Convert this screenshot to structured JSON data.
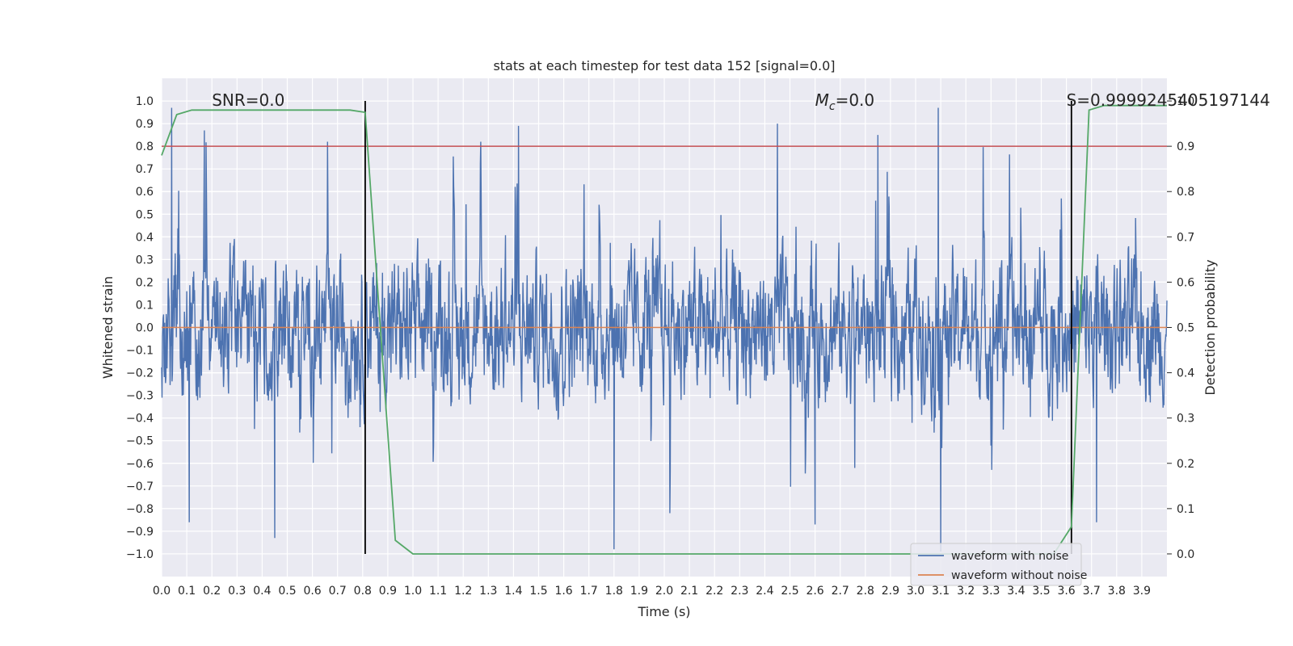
{
  "chart_data": {
    "type": "line",
    "title": "stats at each timestep for test data 152 [signal=0.0]",
    "xlabel": "Time (s)",
    "ylabel": "Whitened strain",
    "y2label": "Detection probability",
    "xlim": [
      0.0,
      4.0
    ],
    "ylim": [
      -1.1,
      1.1
    ],
    "y2lim": [
      -0.05,
      1.05
    ],
    "x_ticks": [
      0.0,
      0.1,
      0.2,
      0.3,
      0.4,
      0.5,
      0.6,
      0.7,
      0.8,
      0.9,
      1.0,
      1.1,
      1.2,
      1.3,
      1.4,
      1.5,
      1.6,
      1.7,
      1.8,
      1.9,
      2.0,
      2.1,
      2.2,
      2.3,
      2.4,
      2.5,
      2.6,
      2.7,
      2.8,
      2.9,
      3.0,
      3.1,
      3.2,
      3.3,
      3.4,
      3.5,
      3.6,
      3.7,
      3.8,
      3.9
    ],
    "x_tick_labels": [
      "0.0",
      "0.1",
      "0.2",
      "0.3",
      "0.4",
      "0.5",
      "0.6",
      "0.7",
      "0.8",
      "0.9",
      "1.0",
      "1.1",
      "1.2",
      "1.3",
      "1.4",
      "1.5",
      "1.6",
      "1.7",
      "1.8",
      "1.9",
      "2.0",
      "2.1",
      "2.2",
      "2.3",
      "2.4",
      "2.5",
      "2.6",
      "2.7",
      "2.8",
      "2.9",
      "3.0",
      "3.1",
      "3.2",
      "3.3",
      "3.4",
      "3.5",
      "3.6",
      "3.7",
      "3.8",
      "3.9"
    ],
    "y_ticks": [
      1.0,
      0.9,
      0.8,
      0.7,
      0.6,
      0.5,
      0.4,
      0.3,
      0.2,
      0.1,
      0.0,
      -0.1,
      -0.2,
      -0.3,
      -0.4,
      -0.5,
      -0.6,
      -0.7,
      -0.8,
      -0.9,
      -1.0
    ],
    "y_tick_labels": [
      "1.0",
      "0.9",
      "0.8",
      "0.7",
      "0.6",
      "0.5",
      "0.4",
      "0.3",
      "0.2",
      "0.1",
      "0.0",
      "−0.1",
      "−0.2",
      "−0.3",
      "−0.4",
      "−0.5",
      "−0.6",
      "−0.7",
      "−0.8",
      "−0.9",
      "−1.0"
    ],
    "y2_ticks": [
      1.0,
      0.9,
      0.8,
      0.7,
      0.6,
      0.5,
      0.4,
      0.3,
      0.2,
      0.1,
      0.0
    ],
    "y2_tick_labels": [
      "1.0",
      "0.9",
      "0.8",
      "0.7",
      "0.6",
      "0.5",
      "0.4",
      "0.3",
      "0.2",
      "0.1",
      "0.0"
    ],
    "grid": true,
    "legend_position": "lower-right",
    "series": [
      {
        "name": "waveform with noise",
        "color": "#4c72b0",
        "axis": "left",
        "description_samples": "dense noise, typical amplitude about 0.4, peaks near 0.97 and -0.98",
        "peaks": [
          [
            0.04,
            0.97
          ],
          [
            0.17,
            0.87
          ],
          [
            0.11,
            -0.86
          ],
          [
            0.45,
            -0.93
          ],
          [
            1.42,
            0.89
          ],
          [
            1.8,
            -0.98
          ],
          [
            2.45,
            0.9
          ],
          [
            2.6,
            -0.87
          ],
          [
            2.85,
            0.85
          ],
          [
            3.09,
            0.97
          ],
          [
            3.1,
            -0.99
          ],
          [
            3.72,
            -0.86
          ]
        ]
      },
      {
        "name": "waveform without noise",
        "color": "#dd8452",
        "axis": "left",
        "x": [
          0.0,
          4.0
        ],
        "y": [
          0.0,
          0.0
        ]
      },
      {
        "color": "#55a868",
        "axis": "right",
        "x": [
          0.0,
          0.06,
          0.12,
          0.25,
          0.5,
          0.75,
          0.81,
          0.87,
          0.93,
          1.0,
          1.2,
          1.6,
          2.0,
          2.4,
          2.8,
          3.2,
          3.55,
          3.62,
          3.69,
          3.75,
          3.85,
          4.0
        ],
        "y": [
          0.88,
          0.97,
          0.98,
          0.98,
          0.98,
          0.98,
          0.975,
          0.5,
          0.03,
          0.0,
          0.0,
          0.0,
          0.0,
          0.0,
          0.0,
          0.0,
          0.0,
          0.06,
          0.98,
          0.99,
          0.99,
          0.99
        ]
      }
    ],
    "hlines": [
      {
        "y2": 0.9,
        "color": "#c44e52"
      }
    ],
    "vlines": [
      {
        "x": 0.81,
        "color": "#000000"
      },
      {
        "x": 3.62,
        "color": "#000000"
      }
    ],
    "annotations": [
      {
        "text": "SNR=0.0",
        "x": 0.2,
        "y": 1.0
      },
      {
        "text_main": "M",
        "text_sub": "c",
        "text_rest": "=0.0",
        "x": 2.6,
        "y": 1.0
      },
      {
        "text": "S=0.9999245405197144",
        "x": 3.6,
        "y": 1.0
      }
    ],
    "legend": [
      {
        "label": "waveform with noise",
        "color": "#4c72b0"
      },
      {
        "label": "waveform without noise",
        "color": "#dd8452"
      }
    ],
    "colors": {
      "plot_background": "#eaeaf2",
      "grid": "#ffffff",
      "text": "#262626"
    }
  }
}
